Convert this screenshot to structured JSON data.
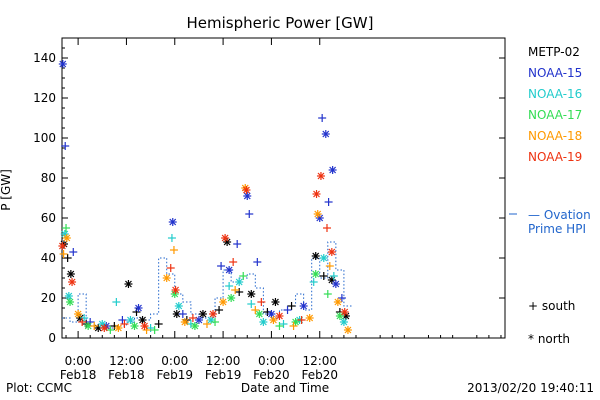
{
  "chart_data": {
    "type": "scatter",
    "title": "Hemispheric Power [GW]",
    "ylabel": "P [GW]",
    "xlabel": "Date and Time",
    "ylim": [
      0,
      150
    ],
    "yticks": [
      0,
      20,
      40,
      60,
      80,
      100,
      120,
      140
    ],
    "xlim": [
      -4,
      106
    ],
    "x_unit": "hours since Feb18 00:00 UT",
    "xticks": [
      {
        "x": 0,
        "time": "0:00",
        "date": "Feb18"
      },
      {
        "x": 12,
        "time": "12:00",
        "date": "Feb18"
      },
      {
        "x": 24,
        "time": "0:00",
        "date": "Feb19"
      },
      {
        "x": 36,
        "time": "12:00",
        "date": "Feb19"
      },
      {
        "x": 48,
        "time": "0:00",
        "date": "Feb20"
      },
      {
        "x": 60,
        "time": "12:00",
        "date": "Feb20"
      }
    ],
    "grid": false,
    "legend_position": "right",
    "series": [
      {
        "name": "METP-02",
        "color": "#000000",
        "points": [
          {
            "x": -3.5,
            "y": 47,
            "h": "north"
          },
          {
            "x": -2.6,
            "y": 40,
            "h": "south"
          },
          {
            "x": -1.8,
            "y": 32,
            "h": "north"
          },
          {
            "x": 0.5,
            "y": 10,
            "h": "north"
          },
          {
            "x": 2,
            "y": 7,
            "h": "south"
          },
          {
            "x": 5,
            "y": 5,
            "h": "north"
          },
          {
            "x": 9,
            "y": 6,
            "h": "south"
          },
          {
            "x": 12.5,
            "y": 27,
            "h": "north"
          },
          {
            "x": 14.5,
            "y": 13,
            "h": "south"
          },
          {
            "x": 16,
            "y": 9,
            "h": "north"
          },
          {
            "x": 20,
            "y": 7,
            "h": "south"
          },
          {
            "x": 24.5,
            "y": 12,
            "h": "north"
          },
          {
            "x": 27,
            "y": 9,
            "h": "south"
          },
          {
            "x": 31,
            "y": 12,
            "h": "north"
          },
          {
            "x": 35,
            "y": 14,
            "h": "south"
          },
          {
            "x": 37,
            "y": 48,
            "h": "north"
          },
          {
            "x": 40,
            "y": 23,
            "h": "south"
          },
          {
            "x": 43,
            "y": 22,
            "h": "north"
          },
          {
            "x": 47,
            "y": 13,
            "h": "south"
          },
          {
            "x": 49,
            "y": 18,
            "h": "north"
          },
          {
            "x": 53,
            "y": 16,
            "h": "south"
          },
          {
            "x": 59,
            "y": 41,
            "h": "north"
          },
          {
            "x": 61,
            "y": 31,
            "h": "south"
          },
          {
            "x": 63,
            "y": 29,
            "h": "north"
          },
          {
            "x": 65,
            "y": 13,
            "h": "south"
          },
          {
            "x": 66.5,
            "y": 11,
            "h": "north"
          }
        ]
      },
      {
        "name": "NOAA-15",
        "color": "#2233cc",
        "points": [
          {
            "x": -3.8,
            "y": 137,
            "h": "north"
          },
          {
            "x": -3.2,
            "y": 96,
            "h": "south"
          },
          {
            "x": -1.2,
            "y": 43,
            "h": "south"
          },
          {
            "x": 3,
            "y": 8,
            "h": "south"
          },
          {
            "x": 7,
            "y": 6,
            "h": "north"
          },
          {
            "x": 11,
            "y": 9,
            "h": "south"
          },
          {
            "x": 15,
            "y": 15,
            "h": "north"
          },
          {
            "x": 23.5,
            "y": 58,
            "h": "north"
          },
          {
            "x": 26,
            "y": 12,
            "h": "south"
          },
          {
            "x": 30,
            "y": 9,
            "h": "north"
          },
          {
            "x": 35.5,
            "y": 36,
            "h": "south"
          },
          {
            "x": 37.5,
            "y": 34,
            "h": "north"
          },
          {
            "x": 39.5,
            "y": 47,
            "h": "south"
          },
          {
            "x": 42,
            "y": 71,
            "h": "north"
          },
          {
            "x": 42.5,
            "y": 62,
            "h": "south"
          },
          {
            "x": 44.5,
            "y": 38,
            "h": "south"
          },
          {
            "x": 48,
            "y": 12,
            "h": "north"
          },
          {
            "x": 52,
            "y": 14,
            "h": "south"
          },
          {
            "x": 56,
            "y": 16,
            "h": "north"
          },
          {
            "x": 60,
            "y": 60,
            "h": "north"
          },
          {
            "x": 60.6,
            "y": 110,
            "h": "south"
          },
          {
            "x": 61.5,
            "y": 102,
            "h": "north"
          },
          {
            "x": 62.2,
            "y": 68,
            "h": "south"
          },
          {
            "x": 63.2,
            "y": 84,
            "h": "north"
          },
          {
            "x": 64,
            "y": 27,
            "h": "north"
          },
          {
            "x": 65.5,
            "y": 20,
            "h": "south"
          }
        ]
      },
      {
        "name": "NOAA-16",
        "color": "#22cccc",
        "points": [
          {
            "x": -3.3,
            "y": 52,
            "h": "north"
          },
          {
            "x": -2.3,
            "y": 21,
            "h": "north"
          },
          {
            "x": 1.5,
            "y": 10,
            "h": "south"
          },
          {
            "x": 6,
            "y": 7,
            "h": "north"
          },
          {
            "x": 9.5,
            "y": 18,
            "h": "south"
          },
          {
            "x": 13,
            "y": 9,
            "h": "north"
          },
          {
            "x": 18,
            "y": 5,
            "h": "south"
          },
          {
            "x": 23.3,
            "y": 50,
            "h": "south"
          },
          {
            "x": 25,
            "y": 16,
            "h": "north"
          },
          {
            "x": 28,
            "y": 7,
            "h": "south"
          },
          {
            "x": 33,
            "y": 9,
            "h": "north"
          },
          {
            "x": 37.5,
            "y": 26,
            "h": "south"
          },
          {
            "x": 40,
            "y": 28,
            "h": "north"
          },
          {
            "x": 43,
            "y": 17,
            "h": "south"
          },
          {
            "x": 46,
            "y": 8,
            "h": "north"
          },
          {
            "x": 51,
            "y": 7,
            "h": "south"
          },
          {
            "x": 55,
            "y": 9,
            "h": "north"
          },
          {
            "x": 58.5,
            "y": 28,
            "h": "south"
          },
          {
            "x": 61,
            "y": 40,
            "h": "north"
          },
          {
            "x": 63.5,
            "y": 31,
            "h": "south"
          },
          {
            "x": 66,
            "y": 8,
            "h": "north"
          }
        ]
      },
      {
        "name": "NOAA-17",
        "color": "#33dd55",
        "points": [
          {
            "x": -3,
            "y": 55,
            "h": "south"
          },
          {
            "x": -2,
            "y": 18,
            "h": "north"
          },
          {
            "x": 2.5,
            "y": 6,
            "h": "north"
          },
          {
            "x": 8,
            "y": 4,
            "h": "south"
          },
          {
            "x": 14,
            "y": 6,
            "h": "north"
          },
          {
            "x": 19,
            "y": 4,
            "h": "south"
          },
          {
            "x": 24,
            "y": 22,
            "h": "north"
          },
          {
            "x": 29,
            "y": 6,
            "h": "north"
          },
          {
            "x": 34,
            "y": 8,
            "h": "south"
          },
          {
            "x": 38,
            "y": 20,
            "h": "north"
          },
          {
            "x": 41,
            "y": 31,
            "h": "south"
          },
          {
            "x": 45,
            "y": 12,
            "h": "north"
          },
          {
            "x": 50,
            "y": 6,
            "h": "south"
          },
          {
            "x": 54,
            "y": 8,
            "h": "north"
          },
          {
            "x": 59,
            "y": 32,
            "h": "north"
          },
          {
            "x": 62,
            "y": 22,
            "h": "south"
          },
          {
            "x": 65,
            "y": 11,
            "h": "north"
          }
        ]
      },
      {
        "name": "NOAA-18",
        "color": "#ff9900",
        "points": [
          {
            "x": -3.6,
            "y": 42,
            "h": "south"
          },
          {
            "x": -2.8,
            "y": 50,
            "h": "north"
          },
          {
            "x": 0,
            "y": 12,
            "h": "north"
          },
          {
            "x": 4,
            "y": 6,
            "h": "south"
          },
          {
            "x": 10,
            "y": 5,
            "h": "north"
          },
          {
            "x": 17,
            "y": 4,
            "h": "south"
          },
          {
            "x": 22,
            "y": 30,
            "h": "north"
          },
          {
            "x": 23.8,
            "y": 44,
            "h": "south"
          },
          {
            "x": 26.5,
            "y": 8,
            "h": "north"
          },
          {
            "x": 32,
            "y": 7,
            "h": "south"
          },
          {
            "x": 36,
            "y": 18,
            "h": "north"
          },
          {
            "x": 39,
            "y": 24,
            "h": "south"
          },
          {
            "x": 41.5,
            "y": 75,
            "h": "north"
          },
          {
            "x": 44,
            "y": 14,
            "h": "south"
          },
          {
            "x": 48.5,
            "y": 9,
            "h": "north"
          },
          {
            "x": 53.5,
            "y": 6,
            "h": "south"
          },
          {
            "x": 57.5,
            "y": 10,
            "h": "north"
          },
          {
            "x": 59.5,
            "y": 62,
            "h": "north"
          },
          {
            "x": 62.5,
            "y": 36,
            "h": "south"
          },
          {
            "x": 64.5,
            "y": 18,
            "h": "north"
          },
          {
            "x": 67,
            "y": 4,
            "h": "north"
          }
        ]
      },
      {
        "name": "NOAA-19",
        "color": "#ee3311",
        "points": [
          {
            "x": -3.9,
            "y": 46,
            "h": "north"
          },
          {
            "x": -1.5,
            "y": 28,
            "h": "north"
          },
          {
            "x": 1,
            "y": 8,
            "h": "south"
          },
          {
            "x": 6.5,
            "y": 5,
            "h": "north"
          },
          {
            "x": 11.5,
            "y": 7,
            "h": "south"
          },
          {
            "x": 16.5,
            "y": 6,
            "h": "north"
          },
          {
            "x": 23,
            "y": 35,
            "h": "south"
          },
          {
            "x": 24.2,
            "y": 24,
            "h": "north"
          },
          {
            "x": 28.5,
            "y": 10,
            "h": "south"
          },
          {
            "x": 33.5,
            "y": 12,
            "h": "north"
          },
          {
            "x": 36.5,
            "y": 50,
            "h": "north"
          },
          {
            "x": 38.5,
            "y": 38,
            "h": "south"
          },
          {
            "x": 41.8,
            "y": 74,
            "h": "north"
          },
          {
            "x": 45.5,
            "y": 18,
            "h": "south"
          },
          {
            "x": 50,
            "y": 11,
            "h": "north"
          },
          {
            "x": 55.5,
            "y": 9,
            "h": "south"
          },
          {
            "x": 59.2,
            "y": 72,
            "h": "north"
          },
          {
            "x": 60.3,
            "y": 81,
            "h": "north"
          },
          {
            "x": 61.8,
            "y": 55,
            "h": "south"
          },
          {
            "x": 63,
            "y": 43,
            "h": "north"
          },
          {
            "x": 66.2,
            "y": 13,
            "h": "north"
          }
        ]
      }
    ],
    "ovation_series": {
      "name": "— Ovation Prime HPI",
      "color": "#2266cc",
      "points": [
        {
          "x": -4,
          "y": 10
        },
        {
          "x": -2,
          "y": 8
        },
        {
          "x": 0,
          "y": 22
        },
        {
          "x": 2,
          "y": 8
        },
        {
          "x": 4,
          "y": 6
        },
        {
          "x": 6,
          "y": 5
        },
        {
          "x": 8,
          "y": 5
        },
        {
          "x": 10,
          "y": 6
        },
        {
          "x": 12,
          "y": 8
        },
        {
          "x": 14,
          "y": 10
        },
        {
          "x": 16,
          "y": 9
        },
        {
          "x": 18,
          "y": 12
        },
        {
          "x": 20,
          "y": 40
        },
        {
          "x": 22,
          "y": 32
        },
        {
          "x": 24,
          "y": 22
        },
        {
          "x": 26,
          "y": 18
        },
        {
          "x": 28,
          "y": 12
        },
        {
          "x": 30,
          "y": 10
        },
        {
          "x": 32,
          "y": 10
        },
        {
          "x": 34,
          "y": 20
        },
        {
          "x": 36,
          "y": 34
        },
        {
          "x": 38,
          "y": 28
        },
        {
          "x": 40,
          "y": 30
        },
        {
          "x": 42,
          "y": 32
        },
        {
          "x": 44,
          "y": 25
        },
        {
          "x": 46,
          "y": 12
        },
        {
          "x": 48,
          "y": 10
        },
        {
          "x": 50,
          "y": 14
        },
        {
          "x": 52,
          "y": 16
        },
        {
          "x": 54,
          "y": 22
        },
        {
          "x": 56,
          "y": 14
        },
        {
          "x": 58,
          "y": 40
        },
        {
          "x": 60,
          "y": 30
        },
        {
          "x": 62,
          "y": 48
        },
        {
          "x": 64,
          "y": 34
        },
        {
          "x": 66,
          "y": 16
        }
      ]
    },
    "hemisphere_key": [
      {
        "symbol": "+",
        "label": "south"
      },
      {
        "symbol": "*",
        "label": "north"
      }
    ]
  },
  "footer": {
    "left": "Plot: CCMC",
    "right": "2013/02/20 19:40:11"
  }
}
